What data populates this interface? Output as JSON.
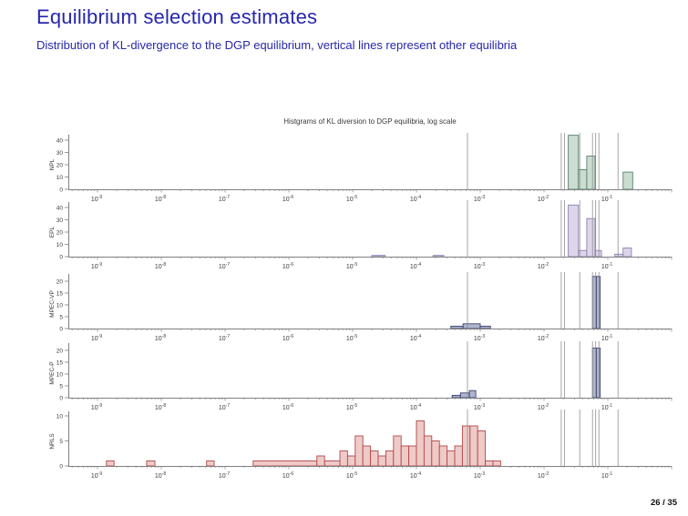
{
  "slide": {
    "title": "Equilibrium selection estimates",
    "subtitle": "Distribution of KL-divergence to the DGP equilibrium, vertical lines represent other equilibria",
    "page_number": "26 / 35"
  },
  "colors": {
    "title_blue": "#2626ae",
    "axis_gray": "#808080",
    "tick_text": "#3c3c3c",
    "vertical_line_gray": "#8f8f8f"
  },
  "chart_data": {
    "type": "bar",
    "title": "Histgrams of KL diversion to DGP equilibria, log scale",
    "xlabel": "",
    "x_scale": "log",
    "x_range_log10": [
      -9.46,
      0
    ],
    "x_tick_exponents": [
      -9,
      -8,
      -7,
      -6,
      -5,
      -4,
      -3,
      -2,
      -1
    ],
    "grid": false,
    "legend": "none",
    "vertical_lines_note": "vertical lines mark other equilibria (log10 positions)",
    "vertical_lines_log10": [
      -3.2,
      -1.73,
      -1.68,
      -1.44,
      -1.24,
      -1.19,
      -1.14,
      -0.84
    ],
    "panels": [
      {
        "label": "NPL",
        "ylim": [
          0,
          45
        ],
        "yticks": [
          0,
          10,
          20,
          30,
          40
        ],
        "fill": "#cbdcd0",
        "edge": "#55816a",
        "bars": [
          [
            -1.62,
            -1.46,
            44
          ],
          [
            -1.46,
            -1.33,
            16
          ],
          [
            -1.33,
            -1.2,
            27
          ],
          [
            -0.76,
            -0.61,
            14
          ]
        ]
      },
      {
        "label": "EPL",
        "ylim": [
          0,
          45
        ],
        "yticks": [
          0,
          10,
          20,
          30,
          40
        ],
        "fill": "#ddd5e9",
        "edge": "#8d7eb0",
        "bars": [
          [
            -4.7,
            -4.49,
            1
          ],
          [
            -3.74,
            -3.57,
            1
          ],
          [
            -1.62,
            -1.46,
            42
          ],
          [
            -1.46,
            -1.33,
            5
          ],
          [
            -1.33,
            -1.2,
            31
          ],
          [
            -1.2,
            -1.1,
            5
          ],
          [
            -0.89,
            -0.76,
            2
          ],
          [
            -0.76,
            -0.63,
            7
          ]
        ]
      },
      {
        "label": "MPEC-VP",
        "ylim": [
          0,
          23
        ],
        "yticks": [
          0,
          5,
          10,
          15,
          20
        ],
        "fill": "#b0b5cf",
        "edge": "#39406e",
        "bars": [
          [
            -3.46,
            -3.27,
            1
          ],
          [
            -3.27,
            -3.0,
            2
          ],
          [
            -3.0,
            -2.84,
            1
          ],
          [
            -1.24,
            -1.18,
            22
          ],
          [
            -1.18,
            -1.12,
            22
          ]
        ]
      },
      {
        "label": "MPEC-P",
        "ylim": [
          0,
          23
        ],
        "yticks": [
          0,
          5,
          10,
          15,
          20
        ],
        "fill": "#b0b5cf",
        "edge": "#39406e",
        "bars": [
          [
            -3.44,
            -3.31,
            1
          ],
          [
            -3.31,
            -3.17,
            2
          ],
          [
            -3.17,
            -3.07,
            3
          ],
          [
            -1.24,
            -1.18,
            21
          ],
          [
            -1.18,
            -1.12,
            21
          ]
        ]
      },
      {
        "label": "NRLS",
        "ylim": [
          0,
          10
        ],
        "yticks": [
          0,
          5,
          10
        ],
        "fill": "#eecac8",
        "edge": "#b24848",
        "bars": [
          [
            -8.86,
            -8.74,
            1
          ],
          [
            -8.23,
            -8.1,
            1
          ],
          [
            -7.29,
            -7.17,
            1
          ],
          [
            -6.56,
            -5.56,
            1
          ],
          [
            -5.56,
            -5.44,
            2
          ],
          [
            -5.44,
            -5.2,
            1
          ],
          [
            -5.2,
            -5.08,
            3
          ],
          [
            -5.08,
            -4.96,
            2
          ],
          [
            -4.96,
            -4.84,
            6
          ],
          [
            -4.84,
            -4.72,
            4
          ],
          [
            -4.72,
            -4.6,
            3
          ],
          [
            -4.6,
            -4.48,
            2
          ],
          [
            -4.48,
            -4.36,
            3
          ],
          [
            -4.36,
            -4.24,
            6
          ],
          [
            -4.24,
            -4.12,
            4
          ],
          [
            -4.12,
            -4.0,
            4
          ],
          [
            -4.0,
            -3.88,
            9
          ],
          [
            -3.88,
            -3.76,
            6
          ],
          [
            -3.76,
            -3.64,
            5
          ],
          [
            -3.64,
            -3.52,
            4
          ],
          [
            -3.52,
            -3.4,
            3
          ],
          [
            -3.4,
            -3.28,
            4
          ],
          [
            -3.28,
            -3.16,
            8
          ],
          [
            -3.16,
            -3.04,
            8
          ],
          [
            -3.04,
            -2.92,
            7
          ],
          [
            -2.92,
            -2.8,
            1
          ],
          [
            -2.8,
            -2.68,
            1
          ]
        ]
      }
    ]
  }
}
